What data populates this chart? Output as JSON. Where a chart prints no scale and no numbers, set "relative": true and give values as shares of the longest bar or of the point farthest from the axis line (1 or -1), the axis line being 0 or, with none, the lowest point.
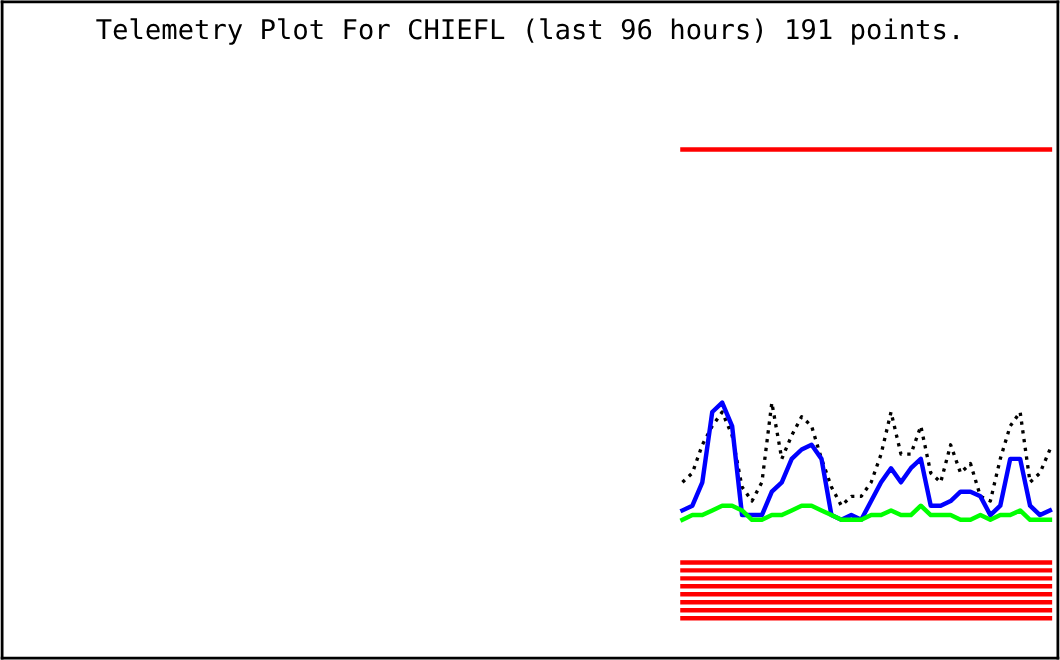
{
  "chart_data": {
    "type": "line",
    "title": "Telemetry Plot For CHIEFL (last 96 hours) 191 points.",
    "relative": true,
    "categories": [
      null,
      null,
      null,
      null,
      null,
      null,
      null,
      null,
      null,
      null,
      null,
      null,
      null,
      null,
      null,
      null,
      null,
      null,
      null,
      null,
      null,
      null,
      null,
      null,
      null,
      null,
      null,
      null,
      null,
      null,
      null,
      null,
      null,
      null,
      null,
      null,
      null,
      null,
      null,
      null,
      null,
      null,
      null,
      null,
      null,
      null,
      null,
      null,
      null,
      null,
      null,
      null,
      null,
      null,
      null,
      null,
      null,
      null,
      null,
      null,
      null,
      null,
      null,
      null,
      null,
      null,
      null,
      null,
      null,
      null,
      null,
      null,
      null,
      null,
      null,
      null,
      null,
      null,
      null,
      null,
      null,
      null,
      null,
      null,
      null,
      null,
      null,
      null,
      null,
      null,
      null,
      null,
      null,
      null,
      null,
      null,
      null,
      null,
      null,
      null,
      null,
      null,
      null,
      null,
      null,
      null
    ],
    "series": [
      {
        "color": "#ff0000",
        "values": [
          null,
          null,
          null,
          null,
          null,
          null,
          null,
          null,
          null,
          null,
          null,
          null,
          null,
          null,
          null,
          null,
          null,
          null,
          null,
          null,
          null,
          null,
          null,
          null,
          null,
          null,
          null,
          null,
          null,
          null,
          null,
          null,
          null,
          null,
          null,
          null,
          null,
          null,
          null,
          null,
          null,
          null,
          null,
          null,
          null,
          null,
          null,
          null,
          null,
          null,
          null,
          null,
          null,
          null,
          null,
          null,
          null,
          null,
          null,
          null,
          null,
          null,
          null,
          null,
          null,
          null,
          null,
          null,
          1,
          1,
          1,
          1,
          1,
          1,
          1,
          1,
          1,
          1,
          1,
          1,
          1,
          1,
          1,
          1,
          1,
          1,
          1,
          1,
          1,
          1,
          1,
          1,
          1,
          1,
          1,
          1,
          1,
          1,
          1,
          1,
          1,
          1,
          1,
          1,
          1,
          1
        ]
      },
      {
        "color": "#000000",
        "line_style": "dotted",
        "values": [
          null,
          null,
          null,
          null,
          null,
          null,
          null,
          null,
          null,
          null,
          null,
          null,
          null,
          null,
          null,
          null,
          null,
          null,
          null,
          null,
          null,
          null,
          null,
          null,
          null,
          null,
          null,
          null,
          null,
          null,
          null,
          null,
          null,
          null,
          null,
          null,
          null,
          null,
          null,
          null,
          null,
          null,
          null,
          null,
          null,
          null,
          null,
          null,
          null,
          null,
          null,
          null,
          null,
          null,
          null,
          null,
          null,
          null,
          null,
          null,
          null,
          null,
          null,
          null,
          null,
          null,
          null,
          null,
          0.29,
          0.31,
          0.37,
          0.41,
          0.44,
          0.39,
          0.28,
          0.25,
          0.29,
          0.46,
          0.34,
          0.39,
          0.43,
          0.41,
          0.34,
          0.28,
          0.24,
          0.26,
          0.26,
          0.29,
          0.35,
          0.44,
          0.35,
          0.35,
          0.41,
          0.31,
          0.29,
          0.37,
          0.31,
          0.33,
          0.26,
          0.25,
          0.34,
          0.41,
          0.44,
          0.29,
          0.31,
          0.36
        ]
      },
      {
        "color": "#0000ff",
        "values": [
          null,
          null,
          null,
          null,
          null,
          null,
          null,
          null,
          null,
          null,
          null,
          null,
          null,
          null,
          null,
          null,
          null,
          null,
          null,
          null,
          null,
          null,
          null,
          null,
          null,
          null,
          null,
          null,
          null,
          null,
          null,
          null,
          null,
          null,
          null,
          null,
          null,
          null,
          null,
          null,
          null,
          null,
          null,
          null,
          null,
          null,
          null,
          null,
          null,
          null,
          null,
          null,
          null,
          null,
          null,
          null,
          null,
          null,
          null,
          null,
          null,
          null,
          null,
          null,
          null,
          null,
          null,
          null,
          0.23,
          0.24,
          0.29,
          0.44,
          0.46,
          0.41,
          0.22,
          0.22,
          0.22,
          0.27,
          0.29,
          0.34,
          0.36,
          0.37,
          0.34,
          0.22,
          0.21,
          0.22,
          0.21,
          0.25,
          0.29,
          0.32,
          0.29,
          0.32,
          0.34,
          0.24,
          0.24,
          0.25,
          0.27,
          0.27,
          0.26,
          0.22,
          0.24,
          0.34,
          0.34,
          0.24,
          0.22,
          0.23
        ]
      },
      {
        "color": "#00ff00",
        "values": [
          null,
          null,
          null,
          null,
          null,
          null,
          null,
          null,
          null,
          null,
          null,
          null,
          null,
          null,
          null,
          null,
          null,
          null,
          null,
          null,
          null,
          null,
          null,
          null,
          null,
          null,
          null,
          null,
          null,
          null,
          null,
          null,
          null,
          null,
          null,
          null,
          null,
          null,
          null,
          null,
          null,
          null,
          null,
          null,
          null,
          null,
          null,
          null,
          null,
          null,
          null,
          null,
          null,
          null,
          null,
          null,
          null,
          null,
          null,
          null,
          null,
          null,
          null,
          null,
          null,
          null,
          null,
          null,
          0.21,
          0.22,
          0.22,
          0.23,
          0.24,
          0.24,
          0.23,
          0.21,
          0.21,
          0.22,
          0.22,
          0.23,
          0.24,
          0.24,
          0.23,
          0.22,
          0.21,
          0.21,
          0.21,
          0.22,
          0.22,
          0.23,
          0.22,
          0.22,
          0.24,
          0.22,
          0.22,
          0.22,
          0.21,
          0.21,
          0.22,
          0.21,
          0.22,
          0.22,
          0.23,
          0.21,
          0.21,
          0.21
        ]
      },
      {
        "color": "#ff0000",
        "values": [
          null,
          null,
          null,
          null,
          null,
          null,
          null,
          null,
          null,
          null,
          null,
          null,
          null,
          null,
          null,
          null,
          null,
          null,
          null,
          null,
          null,
          null,
          null,
          null,
          null,
          null,
          null,
          null,
          null,
          null,
          null,
          null,
          null,
          null,
          null,
          null,
          null,
          null,
          null,
          null,
          null,
          null,
          null,
          null,
          null,
          null,
          null,
          null,
          null,
          null,
          null,
          null,
          null,
          null,
          null,
          null,
          null,
          null,
          null,
          null,
          null,
          null,
          null,
          null,
          null,
          null,
          null,
          null,
          0.119,
          0.119,
          0.119,
          0.119,
          0.119,
          0.119,
          0.119,
          0.119,
          0.119,
          0.119,
          0.119,
          0.119,
          0.119,
          0.119,
          0.119,
          0.119,
          0.119,
          0.119,
          0.119,
          0.119,
          0.119,
          0.119,
          0.119,
          0.119,
          0.119,
          0.119,
          0.119,
          0.119,
          0.119,
          0.119,
          0.119,
          0.119,
          0.119,
          0.119,
          0.119,
          0.119,
          0.119,
          0.119
        ]
      },
      {
        "color": "#ff0000",
        "values": [
          null,
          null,
          null,
          null,
          null,
          null,
          null,
          null,
          null,
          null,
          null,
          null,
          null,
          null,
          null,
          null,
          null,
          null,
          null,
          null,
          null,
          null,
          null,
          null,
          null,
          null,
          null,
          null,
          null,
          null,
          null,
          null,
          null,
          null,
          null,
          null,
          null,
          null,
          null,
          null,
          null,
          null,
          null,
          null,
          null,
          null,
          null,
          null,
          null,
          null,
          null,
          null,
          null,
          null,
          null,
          null,
          null,
          null,
          null,
          null,
          null,
          null,
          null,
          null,
          null,
          null,
          null,
          null,
          0.102,
          0.102,
          0.102,
          0.102,
          0.102,
          0.102,
          0.102,
          0.102,
          0.102,
          0.102,
          0.102,
          0.102,
          0.102,
          0.102,
          0.102,
          0.102,
          0.102,
          0.102,
          0.102,
          0.102,
          0.102,
          0.102,
          0.102,
          0.102,
          0.102,
          0.102,
          0.102,
          0.102,
          0.102,
          0.102,
          0.102,
          0.102,
          0.102,
          0.102,
          0.102,
          0.102,
          0.102,
          0.102
        ]
      },
      {
        "color": "#ff0000",
        "values": [
          null,
          null,
          null,
          null,
          null,
          null,
          null,
          null,
          null,
          null,
          null,
          null,
          null,
          null,
          null,
          null,
          null,
          null,
          null,
          null,
          null,
          null,
          null,
          null,
          null,
          null,
          null,
          null,
          null,
          null,
          null,
          null,
          null,
          null,
          null,
          null,
          null,
          null,
          null,
          null,
          null,
          null,
          null,
          null,
          null,
          null,
          null,
          null,
          null,
          null,
          null,
          null,
          null,
          null,
          null,
          null,
          null,
          null,
          null,
          null,
          null,
          null,
          null,
          null,
          null,
          null,
          null,
          null,
          0.085,
          0.085,
          0.085,
          0.085,
          0.085,
          0.085,
          0.085,
          0.085,
          0.085,
          0.085,
          0.085,
          0.085,
          0.085,
          0.085,
          0.085,
          0.085,
          0.085,
          0.085,
          0.085,
          0.085,
          0.085,
          0.085,
          0.085,
          0.085,
          0.085,
          0.085,
          0.085,
          0.085,
          0.085,
          0.085,
          0.085,
          0.085,
          0.085,
          0.085,
          0.085,
          0.085,
          0.085,
          0.085
        ]
      },
      {
        "color": "#ff0000",
        "values": [
          null,
          null,
          null,
          null,
          null,
          null,
          null,
          null,
          null,
          null,
          null,
          null,
          null,
          null,
          null,
          null,
          null,
          null,
          null,
          null,
          null,
          null,
          null,
          null,
          null,
          null,
          null,
          null,
          null,
          null,
          null,
          null,
          null,
          null,
          null,
          null,
          null,
          null,
          null,
          null,
          null,
          null,
          null,
          null,
          null,
          null,
          null,
          null,
          null,
          null,
          null,
          null,
          null,
          null,
          null,
          null,
          null,
          null,
          null,
          null,
          null,
          null,
          null,
          null,
          null,
          null,
          null,
          null,
          0.068,
          0.068,
          0.068,
          0.068,
          0.068,
          0.068,
          0.068,
          0.068,
          0.068,
          0.068,
          0.068,
          0.068,
          0.068,
          0.068,
          0.068,
          0.068,
          0.068,
          0.068,
          0.068,
          0.068,
          0.068,
          0.068,
          0.068,
          0.068,
          0.068,
          0.068,
          0.068,
          0.068,
          0.068,
          0.068,
          0.068,
          0.068,
          0.068,
          0.068,
          0.068,
          0.068,
          0.068,
          0.068
        ]
      },
      {
        "color": "#ff0000",
        "values": [
          null,
          null,
          null,
          null,
          null,
          null,
          null,
          null,
          null,
          null,
          null,
          null,
          null,
          null,
          null,
          null,
          null,
          null,
          null,
          null,
          null,
          null,
          null,
          null,
          null,
          null,
          null,
          null,
          null,
          null,
          null,
          null,
          null,
          null,
          null,
          null,
          null,
          null,
          null,
          null,
          null,
          null,
          null,
          null,
          null,
          null,
          null,
          null,
          null,
          null,
          null,
          null,
          null,
          null,
          null,
          null,
          null,
          null,
          null,
          null,
          null,
          null,
          null,
          null,
          null,
          null,
          null,
          null,
          0.051,
          0.051,
          0.051,
          0.051,
          0.051,
          0.051,
          0.051,
          0.051,
          0.051,
          0.051,
          0.051,
          0.051,
          0.051,
          0.051,
          0.051,
          0.051,
          0.051,
          0.051,
          0.051,
          0.051,
          0.051,
          0.051,
          0.051,
          0.051,
          0.051,
          0.051,
          0.051,
          0.051,
          0.051,
          0.051,
          0.051,
          0.051,
          0.051,
          0.051,
          0.051,
          0.051,
          0.051,
          0.051
        ]
      },
      {
        "color": "#ff0000",
        "values": [
          null,
          null,
          null,
          null,
          null,
          null,
          null,
          null,
          null,
          null,
          null,
          null,
          null,
          null,
          null,
          null,
          null,
          null,
          null,
          null,
          null,
          null,
          null,
          null,
          null,
          null,
          null,
          null,
          null,
          null,
          null,
          null,
          null,
          null,
          null,
          null,
          null,
          null,
          null,
          null,
          null,
          null,
          null,
          null,
          null,
          null,
          null,
          null,
          null,
          null,
          null,
          null,
          null,
          null,
          null,
          null,
          null,
          null,
          null,
          null,
          null,
          null,
          null,
          null,
          null,
          null,
          null,
          null,
          0.034,
          0.034,
          0.034,
          0.034,
          0.034,
          0.034,
          0.034,
          0.034,
          0.034,
          0.034,
          0.034,
          0.034,
          0.034,
          0.034,
          0.034,
          0.034,
          0.034,
          0.034,
          0.034,
          0.034,
          0.034,
          0.034,
          0.034,
          0.034,
          0.034,
          0.034,
          0.034,
          0.034,
          0.034,
          0.034,
          0.034,
          0.034,
          0.034,
          0.034,
          0.034,
          0.034,
          0.034,
          0.034
        ]
      },
      {
        "color": "#ff0000",
        "values": [
          null,
          null,
          null,
          null,
          null,
          null,
          null,
          null,
          null,
          null,
          null,
          null,
          null,
          null,
          null,
          null,
          null,
          null,
          null,
          null,
          null,
          null,
          null,
          null,
          null,
          null,
          null,
          null,
          null,
          null,
          null,
          null,
          null,
          null,
          null,
          null,
          null,
          null,
          null,
          null,
          null,
          null,
          null,
          null,
          null,
          null,
          null,
          null,
          null,
          null,
          null,
          null,
          null,
          null,
          null,
          null,
          null,
          null,
          null,
          null,
          null,
          null,
          null,
          null,
          null,
          null,
          null,
          null,
          0.017,
          0.017,
          0.017,
          0.017,
          0.017,
          0.017,
          0.017,
          0.017,
          0.017,
          0.017,
          0.017,
          0.017,
          0.017,
          0.017,
          0.017,
          0.017,
          0.017,
          0.017,
          0.017,
          0.017,
          0.017,
          0.017,
          0.017,
          0.017,
          0.017,
          0.017,
          0.017,
          0.017,
          0.017,
          0.017,
          0.017,
          0.017,
          0.017,
          0.017,
          0.017,
          0.017,
          0.017,
          0.017
        ]
      },
      {
        "color": "#ff0000",
        "values": [
          null,
          null,
          null,
          null,
          null,
          null,
          null,
          null,
          null,
          null,
          null,
          null,
          null,
          null,
          null,
          null,
          null,
          null,
          null,
          null,
          null,
          null,
          null,
          null,
          null,
          null,
          null,
          null,
          null,
          null,
          null,
          null,
          null,
          null,
          null,
          null,
          null,
          null,
          null,
          null,
          null,
          null,
          null,
          null,
          null,
          null,
          null,
          null,
          null,
          null,
          null,
          null,
          null,
          null,
          null,
          null,
          null,
          null,
          null,
          null,
          null,
          null,
          null,
          null,
          null,
          null,
          null,
          null,
          0,
          0,
          0,
          0,
          0,
          0,
          0,
          0,
          0,
          0,
          0,
          0,
          0,
          0,
          0,
          0,
          0,
          0,
          0,
          0,
          0,
          0,
          0,
          0,
          0,
          0,
          0,
          0,
          0,
          0,
          0,
          0,
          0,
          0,
          0,
          0,
          0,
          0
        ]
      }
    ]
  }
}
